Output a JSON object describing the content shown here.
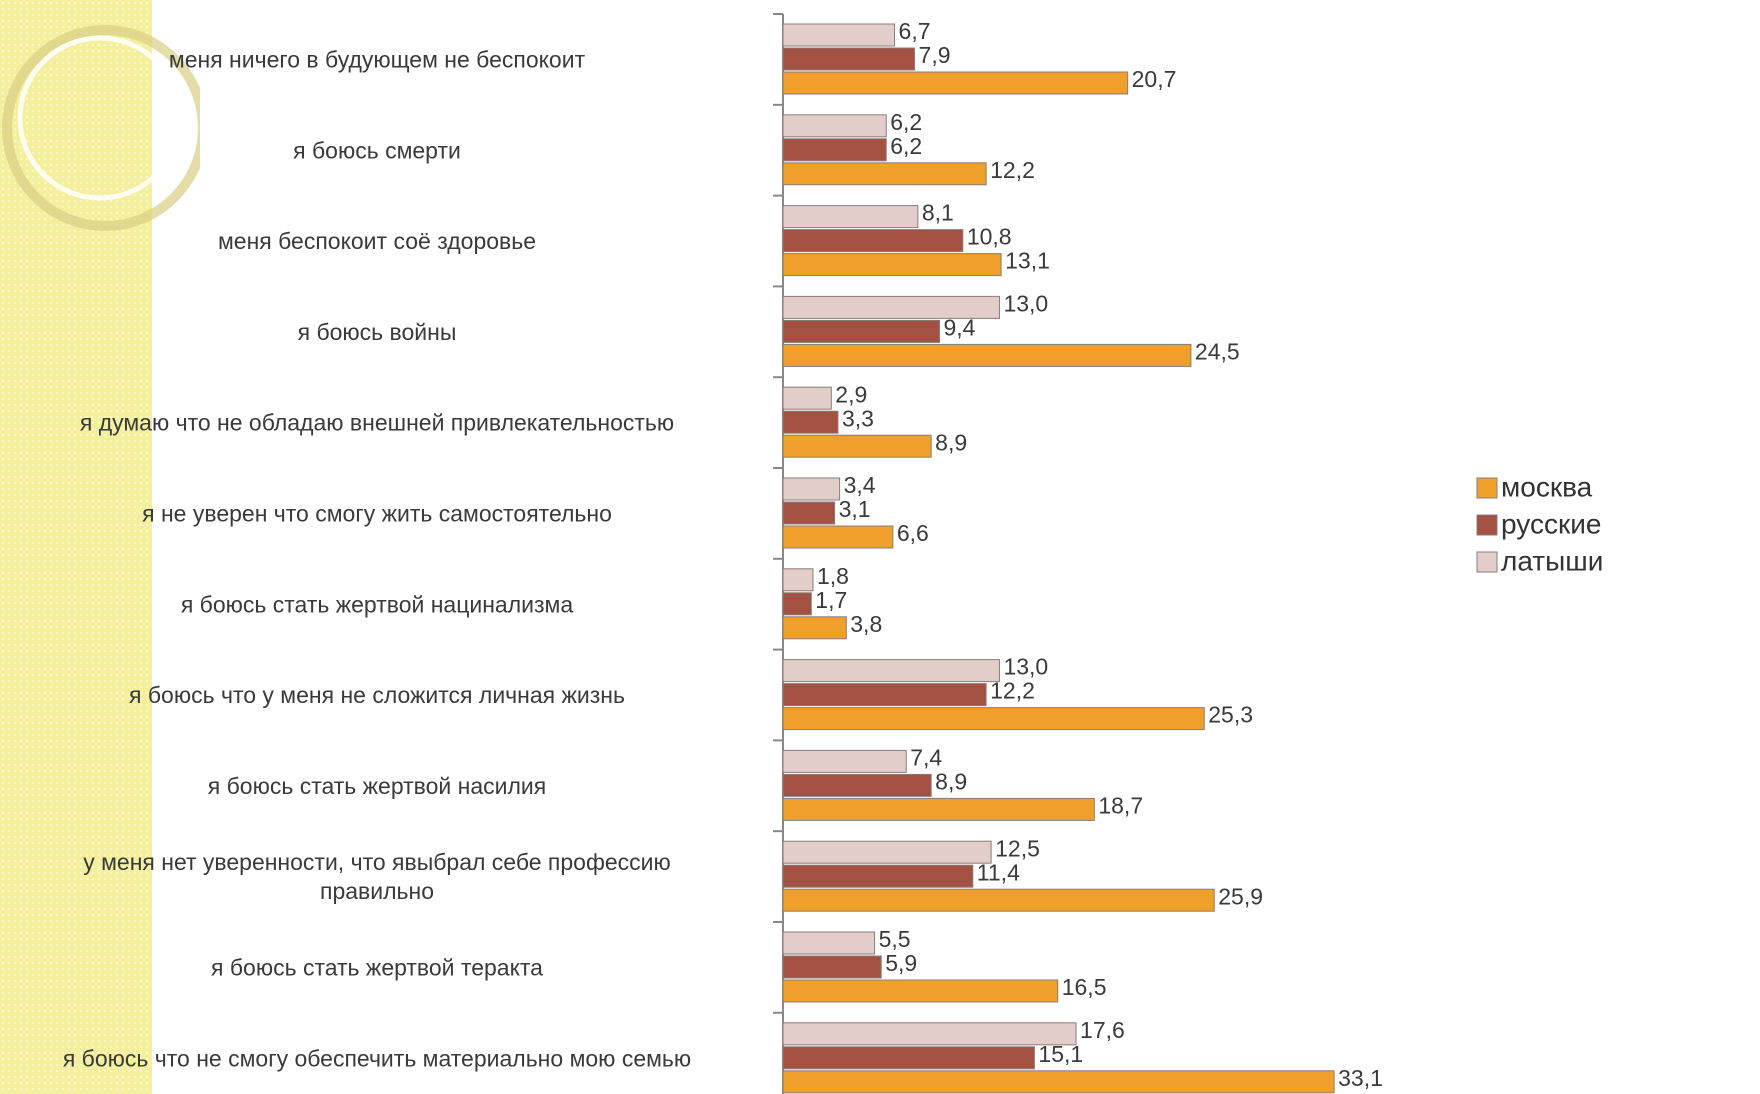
{
  "chart_data": {
    "type": "bar",
    "orientation": "horizontal",
    "categories": [
      "меня ничего в будующем не беспокоит",
      "я боюсь смерти",
      "меня беспокоит соё здоровье",
      "я боюсь войны",
      "я думаю что не обладаю внешней привлекательностью",
      "я не уверен что смогу жить самостоятельно",
      "я боюсь стать жертвой нацинализма",
      "я боюсь что у меня не сложится личная жизнь",
      "я боюсь стать жертвой насилия",
      "у меня нет уверенности, что явыбрал себе профессию правильно",
      "я боюсь стать жертвой теракта",
      "я боюсь что не смогу обеспечить материально мою семью"
    ],
    "category_lines": [
      [
        "меня ничего в будующем не беспокоит"
      ],
      [
        "я боюсь смерти"
      ],
      [
        "меня беспокоит соё здоровье"
      ],
      [
        "я боюсь войны"
      ],
      [
        "я думаю что не обладаю внешней привлекательностью"
      ],
      [
        "я не уверен что смогу жить самостоятельно"
      ],
      [
        "я боюсь стать жертвой нацинализма"
      ],
      [
        "я боюсь что у меня не сложится личная жизнь"
      ],
      [
        "я боюсь стать жертвой насилия"
      ],
      [
        "у меня нет уверенности, что явыбрал себе профессию",
        "правильно"
      ],
      [
        "я боюсь стать жертвой теракта"
      ],
      [
        "я боюсь что не смогу обеспечить материально мою семью"
      ]
    ],
    "series": [
      {
        "name": "латыши",
        "color": "#e3cdcb",
        "values": [
          6.7,
          6.2,
          8.1,
          13.0,
          2.9,
          3.4,
          1.8,
          13.0,
          7.4,
          12.5,
          5.5,
          17.6
        ],
        "labels": [
          "6,7",
          "6,2",
          "8,1",
          "13,0",
          "2,9",
          "3,4",
          "1,8",
          "13,0",
          "7,4",
          "12,5",
          "5,5",
          "17,6"
        ]
      },
      {
        "name": "русские",
        "color": "#a35142",
        "values": [
          7.9,
          6.2,
          10.8,
          9.4,
          3.3,
          3.1,
          1.7,
          12.2,
          8.9,
          11.4,
          5.9,
          15.1
        ],
        "labels": [
          "7,9",
          "6,2",
          "10,8",
          "9,4",
          "3,3",
          "3,1",
          "1,7",
          "12,2",
          "8,9",
          "11,4",
          "5,9",
          "15,1"
        ]
      },
      {
        "name": "москва",
        "color": "#eea02a",
        "values": [
          20.7,
          12.2,
          13.1,
          24.5,
          8.9,
          6.6,
          3.8,
          25.3,
          18.7,
          25.9,
          16.5,
          33.1
        ],
        "labels": [
          "20,7",
          "12,2",
          "13,1",
          "24,5",
          "8,9",
          "6,6",
          "3,8",
          "25,3",
          "18,7",
          "25,9",
          "16,5",
          "33,1"
        ]
      }
    ],
    "legend": {
      "position": "right",
      "items": [
        "москва",
        "русские",
        "латыши"
      ],
      "colors": [
        "#eea02a",
        "#a35142",
        "#e3cdcb"
      ]
    },
    "xlim": [
      0,
      35
    ],
    "grid": false
  }
}
